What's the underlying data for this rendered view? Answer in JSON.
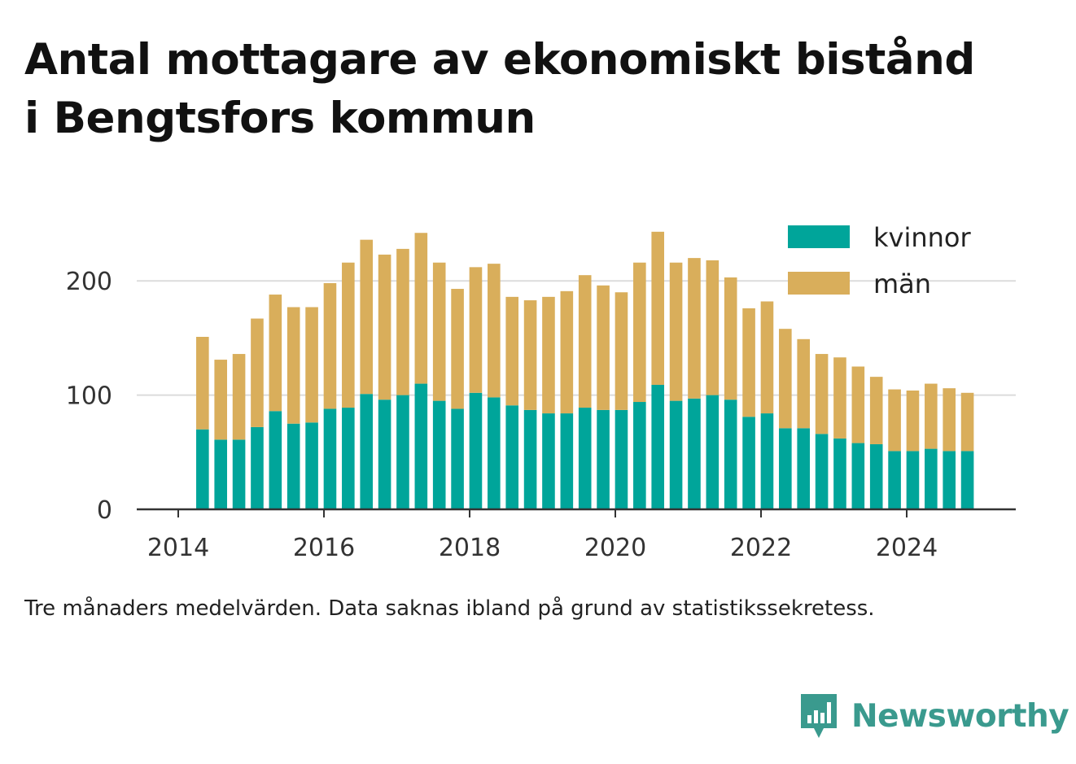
{
  "title_line1": "Antal mottagare av ekonomiskt bistånd",
  "title_line2": "i Bengtsfors kommun",
  "caption": "Tre månaders medelvärden. Data saknas ibland på grund av statistikssekretess.",
  "brand": {
    "name": "Newsworthy",
    "icon": "newsworthy-logo-icon",
    "color": "#3a9a8e"
  },
  "colors": {
    "kvinnor": "#00a59a",
    "man": "#d9ae5b",
    "grid": "#dcdcdc",
    "axis": "#333333"
  },
  "chart_data": {
    "type": "bar",
    "stacked": true,
    "x_ticks": [
      "2014",
      "2016",
      "2018",
      "2020",
      "2022",
      "2024"
    ],
    "y_ticks": [
      0,
      100,
      200
    ],
    "ylim": [
      0,
      250
    ],
    "grid": "horizontal",
    "legend_position": "top-right",
    "x": [
      "2014-05",
      "2014-08",
      "2014-11",
      "2015-02",
      "2015-05",
      "2015-08",
      "2015-11",
      "2016-02",
      "2016-05",
      "2016-08",
      "2016-11",
      "2017-02",
      "2017-05",
      "2017-08",
      "2017-11",
      "2018-02",
      "2018-05",
      "2018-08",
      "2018-11",
      "2019-02",
      "2019-05",
      "2019-08",
      "2019-11",
      "2020-02",
      "2020-05",
      "2020-08",
      "2020-11",
      "2021-02",
      "2021-05",
      "2021-08",
      "2021-11",
      "2022-02",
      "2022-05",
      "2022-08",
      "2022-11",
      "2023-02",
      "2023-05",
      "2023-08",
      "2023-11",
      "2024-02",
      "2024-05",
      "2024-08",
      "2024-11"
    ],
    "series": [
      {
        "name": "kvinnor",
        "values": [
          70,
          61,
          61,
          72,
          86,
          75,
          76,
          88,
          89,
          101,
          96,
          100,
          110,
          95,
          88,
          102,
          98,
          91,
          87,
          84,
          84,
          89,
          87,
          87,
          94,
          109,
          95,
          97,
          100,
          96,
          81,
          84,
          71,
          71,
          66,
          62,
          58,
          57,
          51,
          51,
          53,
          51,
          51
        ]
      },
      {
        "name": "män",
        "values": [
          81,
          70,
          75,
          95,
          102,
          102,
          101,
          110,
          127,
          135,
          127,
          128,
          132,
          121,
          105,
          110,
          117,
          95,
          96,
          102,
          107,
          116,
          109,
          103,
          122,
          134,
          121,
          123,
          118,
          107,
          95,
          98,
          87,
          78,
          70,
          71,
          67,
          59,
          54,
          53,
          57,
          55,
          51
        ]
      }
    ]
  }
}
